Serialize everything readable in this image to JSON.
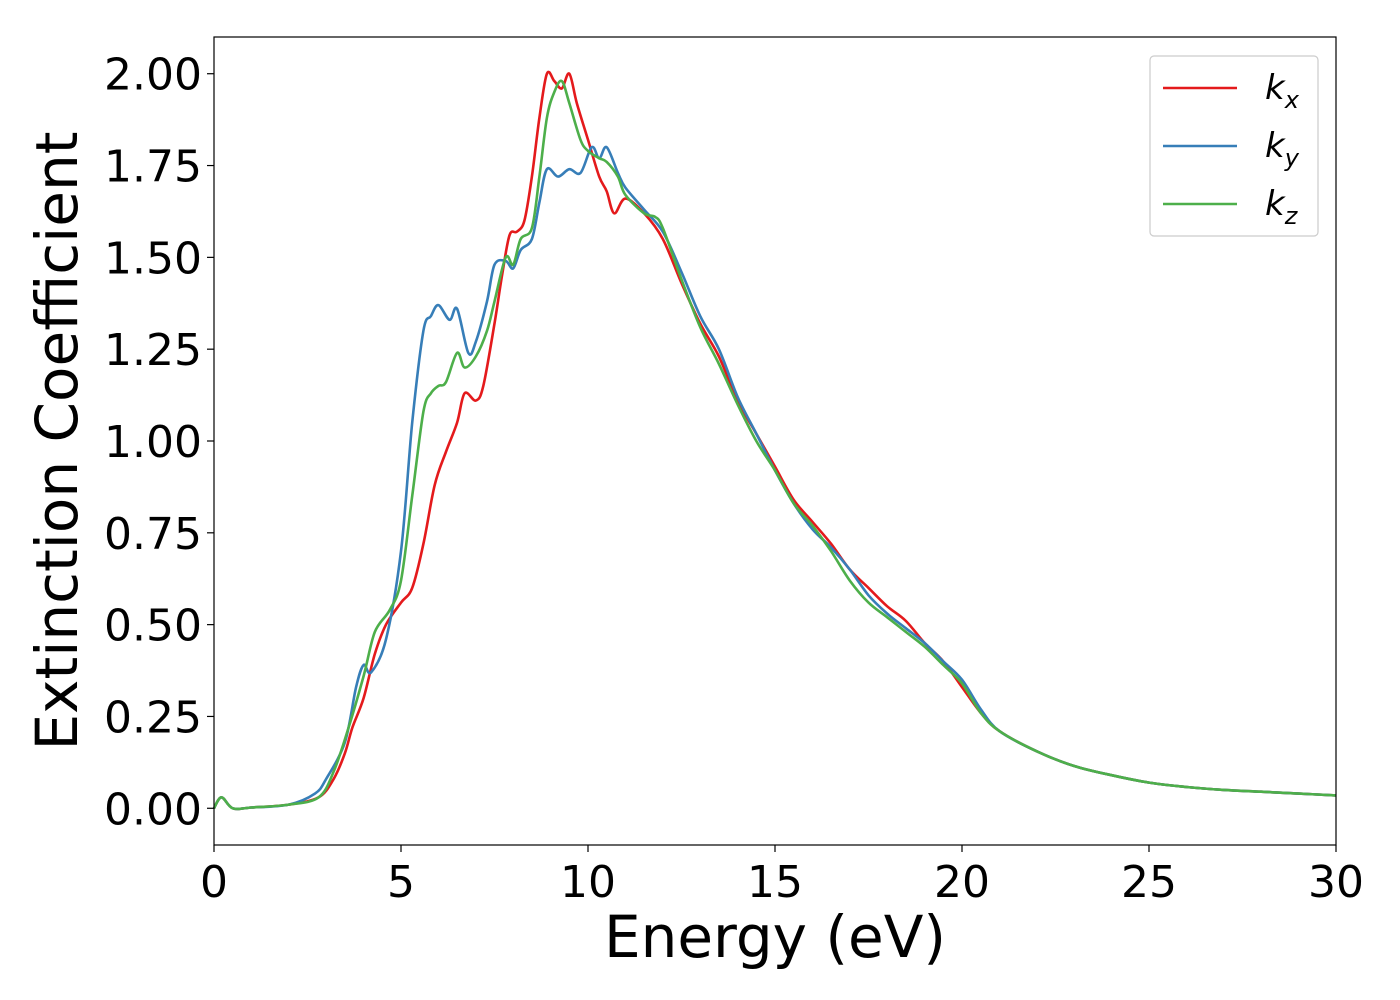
{
  "chart_data": {
    "type": "line",
    "title": "",
    "xlabel": "Energy (eV)",
    "ylabel": "Extinction Coefficient",
    "xlim": [
      0,
      30
    ],
    "ylim": [
      -0.1,
      2.1
    ],
    "xticks": [
      0,
      5,
      10,
      15,
      20,
      25,
      30
    ],
    "xtick_labels": [
      "0",
      "5",
      "10",
      "15",
      "20",
      "25",
      "30"
    ],
    "yticks": [
      0,
      0.25,
      0.5,
      0.75,
      1.0,
      1.25,
      1.5,
      1.75,
      2.0
    ],
    "ytick_labels": [
      "0.00",
      "0.25",
      "0.50",
      "0.75",
      "1.00",
      "1.25",
      "1.50",
      "1.75",
      "2.00"
    ],
    "grid": false,
    "legend_position": "top-right",
    "series": [
      {
        "name": "k_x",
        "label_base": "k",
        "label_sub": "x",
        "color": "#e41a1c",
        "x": [
          0,
          0.2,
          0.5,
          1,
          2,
          2.8,
          3.2,
          3.5,
          3.7,
          4,
          4.3,
          4.6,
          5,
          5.3,
          5.6,
          5.9,
          6.2,
          6.5,
          6.7,
          7,
          7.2,
          7.5,
          7.7,
          7.9,
          8.1,
          8.3,
          8.5,
          8.7,
          8.9,
          9.1,
          9.3,
          9.5,
          9.7,
          10,
          10.3,
          10.5,
          10.7,
          11,
          11.5,
          12,
          12.5,
          13,
          13.5,
          14,
          14.5,
          15,
          15.5,
          16,
          16.5,
          17,
          17.5,
          18,
          18.5,
          19,
          19.5,
          20,
          20.5,
          21,
          22,
          23,
          24,
          25,
          26,
          27,
          28,
          29,
          30
        ],
        "y": [
          0,
          0.03,
          0,
          0.002,
          0.01,
          0.03,
          0.08,
          0.15,
          0.22,
          0.3,
          0.42,
          0.5,
          0.56,
          0.6,
          0.72,
          0.88,
          0.97,
          1.05,
          1.13,
          1.11,
          1.15,
          1.32,
          1.45,
          1.56,
          1.57,
          1.6,
          1.72,
          1.88,
          2.0,
          1.98,
          1.96,
          2.0,
          1.92,
          1.82,
          1.72,
          1.68,
          1.62,
          1.66,
          1.62,
          1.55,
          1.43,
          1.32,
          1.23,
          1.11,
          1.02,
          0.93,
          0.84,
          0.78,
          0.72,
          0.65,
          0.6,
          0.55,
          0.51,
          0.45,
          0.4,
          0.33,
          0.26,
          0.21,
          0.155,
          0.115,
          0.09,
          0.07,
          0.058,
          0.05,
          0.045,
          0.04,
          0.035
        ]
      },
      {
        "name": "k_y",
        "label_base": "k",
        "label_sub": "y",
        "color": "#377eb8",
        "x": [
          0,
          0.2,
          0.5,
          1,
          2,
          2.7,
          3,
          3.5,
          3.8,
          4,
          4.2,
          4.6,
          5,
          5.3,
          5.6,
          5.8,
          6,
          6.3,
          6.5,
          6.8,
          7,
          7.3,
          7.5,
          7.8,
          8,
          8.2,
          8.5,
          8.7,
          8.9,
          9.2,
          9.5,
          9.8,
          10.1,
          10.3,
          10.5,
          10.8,
          11,
          11.5,
          12,
          12.5,
          13,
          13.5,
          14,
          14.5,
          15,
          15.5,
          16,
          16.5,
          17,
          17.5,
          18,
          18.5,
          19,
          19.5,
          20,
          20.5,
          21,
          22,
          23,
          24,
          25,
          26,
          27,
          28,
          29,
          30
        ],
        "y": [
          0,
          0.03,
          0,
          0.002,
          0.01,
          0.04,
          0.08,
          0.18,
          0.33,
          0.39,
          0.37,
          0.46,
          0.7,
          1.05,
          1.3,
          1.34,
          1.37,
          1.33,
          1.36,
          1.24,
          1.27,
          1.38,
          1.48,
          1.49,
          1.47,
          1.52,
          1.55,
          1.65,
          1.74,
          1.72,
          1.74,
          1.73,
          1.8,
          1.77,
          1.8,
          1.73,
          1.69,
          1.63,
          1.57,
          1.46,
          1.34,
          1.25,
          1.12,
          1.02,
          0.92,
          0.83,
          0.76,
          0.71,
          0.65,
          0.58,
          0.53,
          0.49,
          0.45,
          0.4,
          0.35,
          0.27,
          0.21,
          0.155,
          0.115,
          0.09,
          0.07,
          0.058,
          0.05,
          0.045,
          0.04,
          0.035
        ]
      },
      {
        "name": "k_z",
        "label_base": "k",
        "label_sub": "z",
        "color": "#4daf4a",
        "x": [
          0,
          0.2,
          0.5,
          1,
          2,
          2.8,
          3.2,
          3.6,
          4,
          4.3,
          4.7,
          5,
          5.3,
          5.6,
          5.8,
          6,
          6.2,
          6.5,
          6.7,
          7,
          7.3,
          7.5,
          7.8,
          8,
          8.2,
          8.5,
          8.7,
          8.9,
          9.1,
          9.3,
          9.5,
          9.8,
          10,
          10.3,
          10.5,
          10.8,
          11,
          11.5,
          11.8,
          12,
          12.5,
          13,
          13.5,
          14,
          14.5,
          15,
          15.5,
          16,
          16.5,
          17,
          17.5,
          18,
          18.5,
          19,
          19.5,
          20,
          20.5,
          21,
          22,
          23,
          24,
          25,
          26,
          27,
          28,
          29,
          30
        ],
        "y": [
          0,
          0.03,
          0,
          0.002,
          0.01,
          0.03,
          0.1,
          0.22,
          0.36,
          0.48,
          0.54,
          0.62,
          0.85,
          1.08,
          1.13,
          1.15,
          1.16,
          1.24,
          1.2,
          1.23,
          1.3,
          1.38,
          1.5,
          1.48,
          1.55,
          1.58,
          1.72,
          1.88,
          1.95,
          1.98,
          1.92,
          1.82,
          1.79,
          1.77,
          1.76,
          1.72,
          1.67,
          1.62,
          1.61,
          1.58,
          1.44,
          1.31,
          1.21,
          1.1,
          1.0,
          0.92,
          0.83,
          0.77,
          0.7,
          0.62,
          0.56,
          0.52,
          0.48,
          0.44,
          0.39,
          0.34,
          0.26,
          0.21,
          0.155,
          0.115,
          0.09,
          0.07,
          0.058,
          0.05,
          0.045,
          0.04,
          0.035
        ]
      }
    ]
  }
}
